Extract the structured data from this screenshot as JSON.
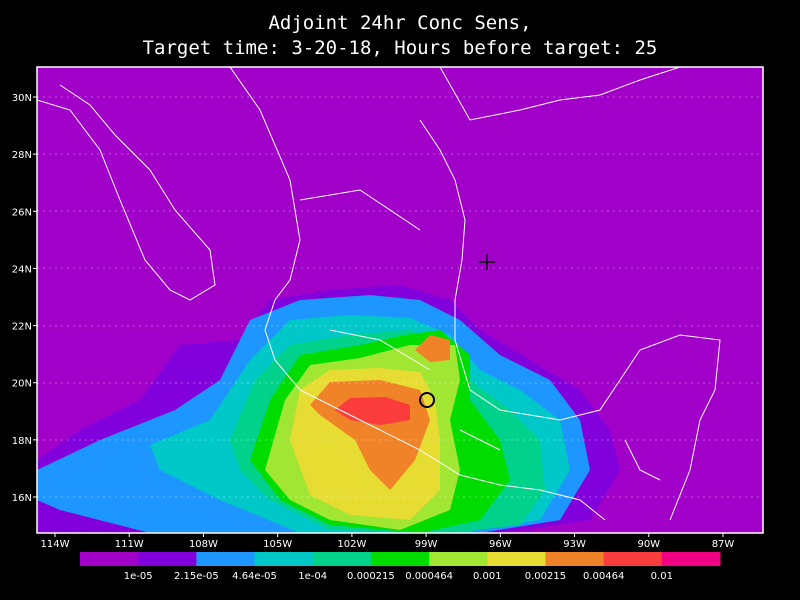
{
  "title": [
    "Adjoint 24hr Conc Sens,",
    "Target time: 3-20-18, Hours before target: 25"
  ],
  "lat_labels": [
    "30N",
    "28N",
    "26N",
    "24N",
    "22N",
    "20N",
    "18N",
    "16N"
  ],
  "lon_labels": [
    "114W",
    "111W",
    "108W",
    "105W",
    "102W",
    "99W",
    "96W",
    "93W",
    "90W",
    "87W"
  ],
  "colorbar": {
    "colors": [
      "#a000c8",
      "#8200dc",
      "#1e96ff",
      "#00c8c8",
      "#00d28c",
      "#00dc00",
      "#a0e632",
      "#e6dc32",
      "#f08228",
      "#fa3c3c",
      "#f00082"
    ],
    "labels": [
      "1e-05",
      "2.15e-05",
      "4.64e-05",
      "1e-04",
      "0.000215",
      "0.000464",
      "0.001",
      "0.00215",
      "0.00464",
      "0.01"
    ]
  }
}
